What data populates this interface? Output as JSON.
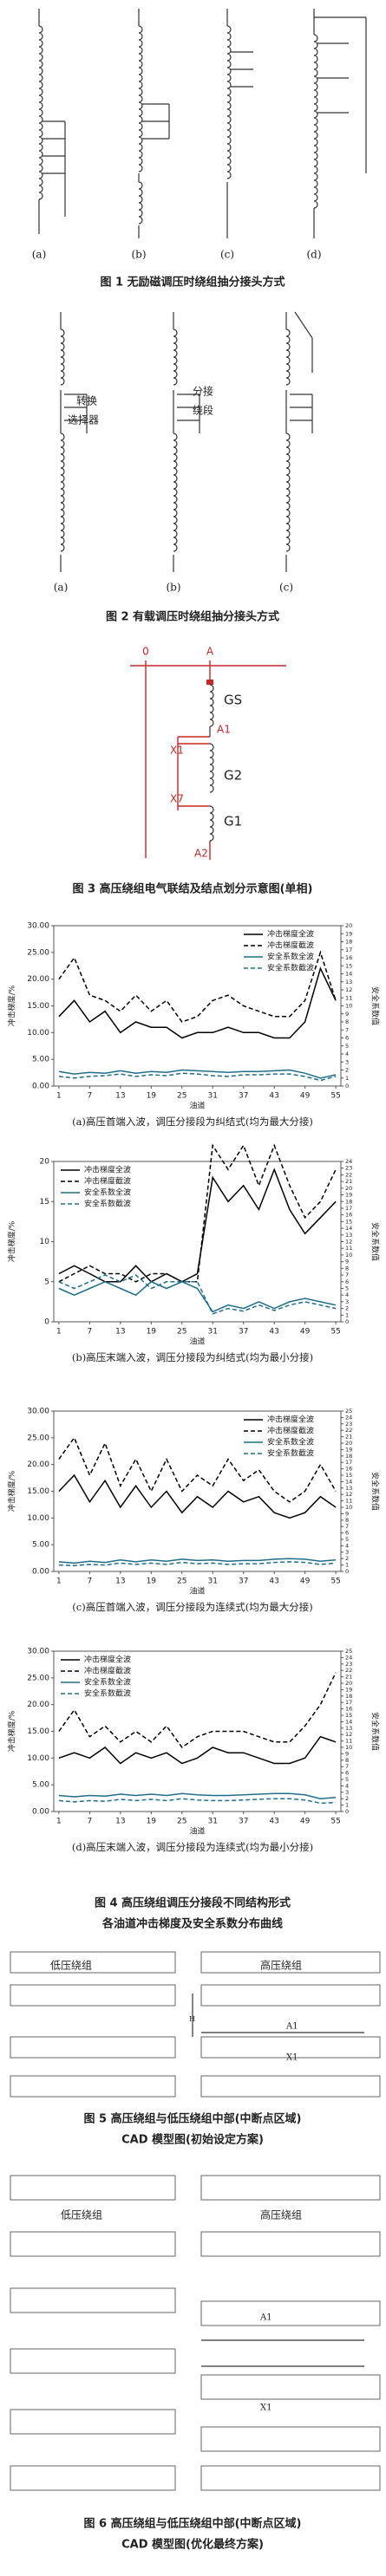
{
  "figure1": {
    "labels": [
      "(a)",
      "(b)",
      "(c)",
      "(d)"
    ],
    "caption": "图 1 无励磁调压时绕组抽分接头方式"
  },
  "figure2": {
    "labels": [
      "转换",
      "选择器",
      "分接",
      "绕段",
      "(a)",
      "(b)",
      "(c)"
    ],
    "caption": "图 2 有载调压时绕组抽分接头方式"
  },
  "figure3": {
    "labels": [
      "0",
      "A",
      "GS",
      "A1",
      "X1",
      "G2",
      "X7",
      "G1",
      "A2"
    ],
    "caption": "图 3 高压绕组电气联结及结点划分示意图(单相)"
  },
  "chart_data": [
    {
      "type": "line",
      "subtitle": "(a)高压首端入波，调压分接段为纠结式(均为最大分接)",
      "x_label": "油道",
      "y_label": "冲击梯度/%",
      "y2_label": "安全系数值",
      "legend": "upper right",
      "x": [
        1,
        4,
        7,
        10,
        13,
        16,
        19,
        22,
        25,
        28,
        31,
        34,
        37,
        40,
        43,
        46,
        49,
        52,
        55
      ],
      "xlim": [
        0,
        56
      ],
      "xticks": [
        1,
        7,
        13,
        19,
        25,
        31,
        37,
        43,
        49,
        55
      ],
      "ylim": [
        0,
        30
      ],
      "yticks": [
        {
          "value": 0,
          "label": "0.00"
        },
        {
          "value": 5,
          "label": "5.00"
        },
        {
          "value": 10,
          "label": "10.00"
        },
        {
          "value": 15,
          "label": "15.00"
        },
        {
          "value": 20,
          "label": "20.00"
        },
        {
          "value": 25,
          "label": "25.00"
        },
        {
          "value": 30,
          "label": "30.00"
        }
      ],
      "y2lim": [
        0,
        20
      ],
      "y2ticks": [
        0,
        1,
        2,
        3,
        4,
        5,
        6,
        7,
        8,
        9,
        10,
        11,
        12,
        13,
        14,
        15,
        16,
        17,
        18,
        19,
        20
      ],
      "series": [
        {
          "name": "冲击梯度全波",
          "color": "#000000",
          "line_style": "solid",
          "values": [
            13,
            16,
            12,
            14,
            10,
            12,
            11,
            11,
            9,
            10,
            10,
            11,
            10,
            10,
            9,
            9,
            12,
            22,
            16
          ]
        },
        {
          "name": "冲击梯度截波",
          "color": "#000000",
          "line_style": "dashed",
          "values": [
            20,
            24,
            17,
            16,
            14,
            17,
            14,
            16,
            12,
            13,
            16,
            17,
            15,
            14,
            13,
            13,
            16,
            25,
            16
          ]
        },
        {
          "name": "安全系数全波",
          "color": "#1f6e8c",
          "line_style": "solid",
          "axis": "y2",
          "values": [
            1.8,
            1.5,
            1.7,
            1.6,
            1.9,
            1.6,
            1.8,
            1.7,
            2.0,
            1.9,
            1.8,
            1.7,
            1.8,
            1.8,
            1.9,
            2.0,
            1.6,
            1.0,
            1.4
          ]
        },
        {
          "name": "安全系数截波",
          "color": "#1f6e8c",
          "line_style": "dashed",
          "axis": "y2",
          "values": [
            1.2,
            1.0,
            1.2,
            1.3,
            1.5,
            1.2,
            1.4,
            1.3,
            1.6,
            1.5,
            1.3,
            1.2,
            1.4,
            1.4,
            1.5,
            1.5,
            1.2,
            0.7,
            1.2
          ]
        }
      ]
    },
    {
      "type": "line",
      "subtitle": "(b)高压末端入波，调压分接段为纠结式(均为最小分接)",
      "x_label": "油道",
      "y_label": "冲击梯度/%",
      "y2_label": "安全系数值",
      "legend": "upper left",
      "x": [
        1,
        4,
        7,
        10,
        13,
        16,
        19,
        22,
        25,
        28,
        31,
        34,
        37,
        40,
        43,
        46,
        49,
        52,
        55
      ],
      "xlim": [
        0,
        56
      ],
      "xticks": [
        1,
        7,
        13,
        19,
        25,
        31,
        37,
        43,
        49,
        55
      ],
      "ylim": [
        0,
        20
      ],
      "yticks": [
        0,
        5,
        10,
        15,
        20
      ],
      "y2lim": [
        0,
        24
      ],
      "y2ticks": [
        0,
        1,
        2,
        3,
        4,
        5,
        6,
        7,
        8,
        9,
        10,
        11,
        12,
        13,
        14,
        15,
        16,
        17,
        18,
        19,
        20,
        21,
        22,
        23,
        24
      ],
      "series": [
        {
          "name": "冲击梯度全波",
          "color": "#000000",
          "line_style": "solid",
          "values": [
            6,
            7,
            6,
            5,
            5,
            7,
            5,
            6,
            5,
            6,
            18,
            15,
            17,
            14,
            19,
            14,
            11,
            13,
            15
          ]
        },
        {
          "name": "冲击梯度截波",
          "color": "#000000",
          "line_style": "dashed",
          "values": [
            5,
            6,
            7,
            6,
            6,
            5,
            6,
            6,
            5,
            5,
            22,
            19,
            22,
            17,
            22,
            17,
            13,
            15,
            19
          ]
        },
        {
          "name": "安全系数全波",
          "color": "#1f6e8c",
          "line_style": "solid",
          "axis": "y2",
          "values": [
            5,
            4,
            5,
            6,
            5,
            4,
            6,
            5,
            6,
            5,
            1.5,
            2.5,
            2,
            3,
            2,
            3,
            3.5,
            3,
            2.5
          ]
        },
        {
          "name": "安全系数截波",
          "color": "#1f6e8c",
          "line_style": "dashed",
          "axis": "y2",
          "values": [
            6,
            5,
            6,
            7,
            6,
            7,
            5,
            6,
            6,
            6,
            1.2,
            2,
            1.6,
            2.5,
            1.7,
            2.5,
            3,
            2.5,
            2
          ]
        }
      ]
    },
    {
      "type": "line",
      "subtitle": "(c)高压首端入波，调压分接段为连续式(均为最大分接)",
      "x_label": "油道",
      "y_label": "冲击梯度/%",
      "y2_label": "安全系数值",
      "legend": "upper right",
      "x": [
        1,
        4,
        7,
        10,
        13,
        16,
        19,
        22,
        25,
        28,
        31,
        34,
        37,
        40,
        43,
        46,
        49,
        52,
        55
      ],
      "xlim": [
        0,
        56
      ],
      "xticks": [
        1,
        7,
        13,
        19,
        25,
        31,
        37,
        43,
        49,
        55
      ],
      "ylim": [
        0,
        30
      ],
      "yticks": [
        {
          "value": 0,
          "label": "0.00"
        },
        {
          "value": 5,
          "label": "5.00"
        },
        {
          "value": 10,
          "label": "10.00"
        },
        {
          "value": 15,
          "label": "15.00"
        },
        {
          "value": 20,
          "label": "20.00"
        },
        {
          "value": 25,
          "label": "25.00"
        },
        {
          "value": 30,
          "label": "30.00"
        }
      ],
      "y2lim": [
        0,
        25
      ],
      "y2ticks": [
        0,
        1,
        2,
        3,
        4,
        5,
        6,
        7,
        8,
        9,
        10,
        11,
        12,
        13,
        14,
        15,
        16,
        17,
        18,
        19,
        20,
        21,
        22,
        23,
        24,
        25
      ],
      "series": [
        {
          "name": "冲击梯度全波",
          "color": "#000000",
          "line_style": "solid",
          "values": [
            15,
            18,
            13,
            17,
            12,
            16,
            12,
            15,
            11,
            14,
            12,
            15,
            13,
            14,
            11,
            10,
            11,
            14,
            12
          ]
        },
        {
          "name": "冲击梯度截波",
          "color": "#000000",
          "line_style": "dashed",
          "values": [
            21,
            25,
            18,
            24,
            16,
            21,
            15,
            21,
            15,
            18,
            16,
            21,
            17,
            19,
            15,
            13,
            15,
            20,
            15
          ]
        },
        {
          "name": "安全系数全波",
          "color": "#1f6e8c",
          "line_style": "solid",
          "axis": "y2",
          "values": [
            1.5,
            1.3,
            1.6,
            1.4,
            1.8,
            1.5,
            1.8,
            1.6,
            1.9,
            1.7,
            1.8,
            1.6,
            1.7,
            1.7,
            1.9,
            2.0,
            1.9,
            1.6,
            1.8
          ]
        },
        {
          "name": "安全系数截波",
          "color": "#1f6e8c",
          "line_style": "dashed",
          "axis": "y2",
          "values": [
            1.0,
            0.9,
            1.1,
            1.0,
            1.3,
            1.1,
            1.3,
            1.1,
            1.4,
            1.2,
            1.3,
            1.1,
            1.2,
            1.2,
            1.4,
            1.5,
            1.4,
            1.1,
            1.3
          ]
        }
      ]
    },
    {
      "type": "line",
      "subtitle": "(d)高压末端入波，调压分接段为连续式(均为最小分接)",
      "x_label": "油道",
      "y_label": "冲击梯度/%",
      "y2_label": "安全系数值",
      "legend": "upper left",
      "x": [
        1,
        4,
        7,
        10,
        13,
        16,
        19,
        22,
        25,
        28,
        31,
        34,
        37,
        40,
        43,
        46,
        49,
        52,
        55
      ],
      "xlim": [
        0,
        56
      ],
      "xticks": [
        1,
        7,
        13,
        19,
        25,
        31,
        37,
        43,
        49,
        55
      ],
      "ylim": [
        0,
        30
      ],
      "yticks": [
        {
          "value": 0,
          "label": "0.00"
        },
        {
          "value": 5,
          "label": "5.00"
        },
        {
          "value": 10,
          "label": "10.00"
        },
        {
          "value": 15,
          "label": "15.00"
        },
        {
          "value": 20,
          "label": "20.00"
        },
        {
          "value": 25,
          "label": "25.00"
        },
        {
          "value": 30,
          "label": "30.00"
        }
      ],
      "y2lim": [
        0,
        25
      ],
      "y2ticks": [
        0,
        1,
        2,
        3,
        4,
        5,
        6,
        7,
        8,
        9,
        10,
        11,
        12,
        13,
        14,
        15,
        16,
        17,
        18,
        19,
        20,
        21,
        22,
        23,
        24,
        25
      ],
      "series": [
        {
          "name": "冲击梯度全波",
          "color": "#000000",
          "line_style": "solid",
          "values": [
            10,
            11,
            10,
            12,
            9,
            11,
            10,
            11,
            9,
            10,
            12,
            11,
            11,
            10,
            9,
            9,
            10,
            14,
            13
          ]
        },
        {
          "name": "冲击梯度截波",
          "color": "#000000",
          "line_style": "dashed",
          "values": [
            15,
            19,
            14,
            16,
            13,
            15,
            13,
            16,
            12,
            14,
            15,
            15,
            15,
            14,
            13,
            13,
            16,
            20,
            26
          ]
        },
        {
          "name": "安全系数全波",
          "color": "#1f6e8c",
          "line_style": "solid",
          "axis": "y2",
          "values": [
            2.5,
            2.3,
            2.5,
            2.4,
            2.7,
            2.5,
            2.7,
            2.5,
            2.8,
            2.6,
            2.5,
            2.5,
            2.6,
            2.7,
            2.8,
            2.8,
            2.6,
            2.0,
            2.2
          ]
        },
        {
          "name": "安全系数截波",
          "color": "#1f6e8c",
          "line_style": "dashed",
          "axis": "y2",
          "values": [
            1.7,
            1.5,
            1.7,
            1.6,
            1.9,
            1.7,
            1.9,
            1.7,
            2.0,
            1.8,
            1.7,
            1.7,
            1.8,
            1.9,
            2.0,
            2.0,
            1.8,
            1.3,
            1.4
          ]
        }
      ]
    }
  ],
  "figure4": {
    "caption": [
      "图 4 高压绕组调压分接段不同结构形式",
      "各油道冲击梯度及安全系数分布曲线"
    ]
  },
  "figure5": {
    "labels": [
      "低压绕组",
      "高压绕组",
      "A1",
      "X1",
      "H"
    ],
    "caption": [
      "图 5 高压绕组与低压绕组中部(中断点区域)",
      "CAD 模型图(初始设定方案)"
    ]
  },
  "figure6": {
    "labels": [
      "低压绕组",
      "高压绕组",
      "A1",
      "X1"
    ],
    "caption": [
      "图 6 高压绕组与低压绕组中部(中断点区域)",
      "CAD 模型图(优化最终方案)"
    ]
  }
}
